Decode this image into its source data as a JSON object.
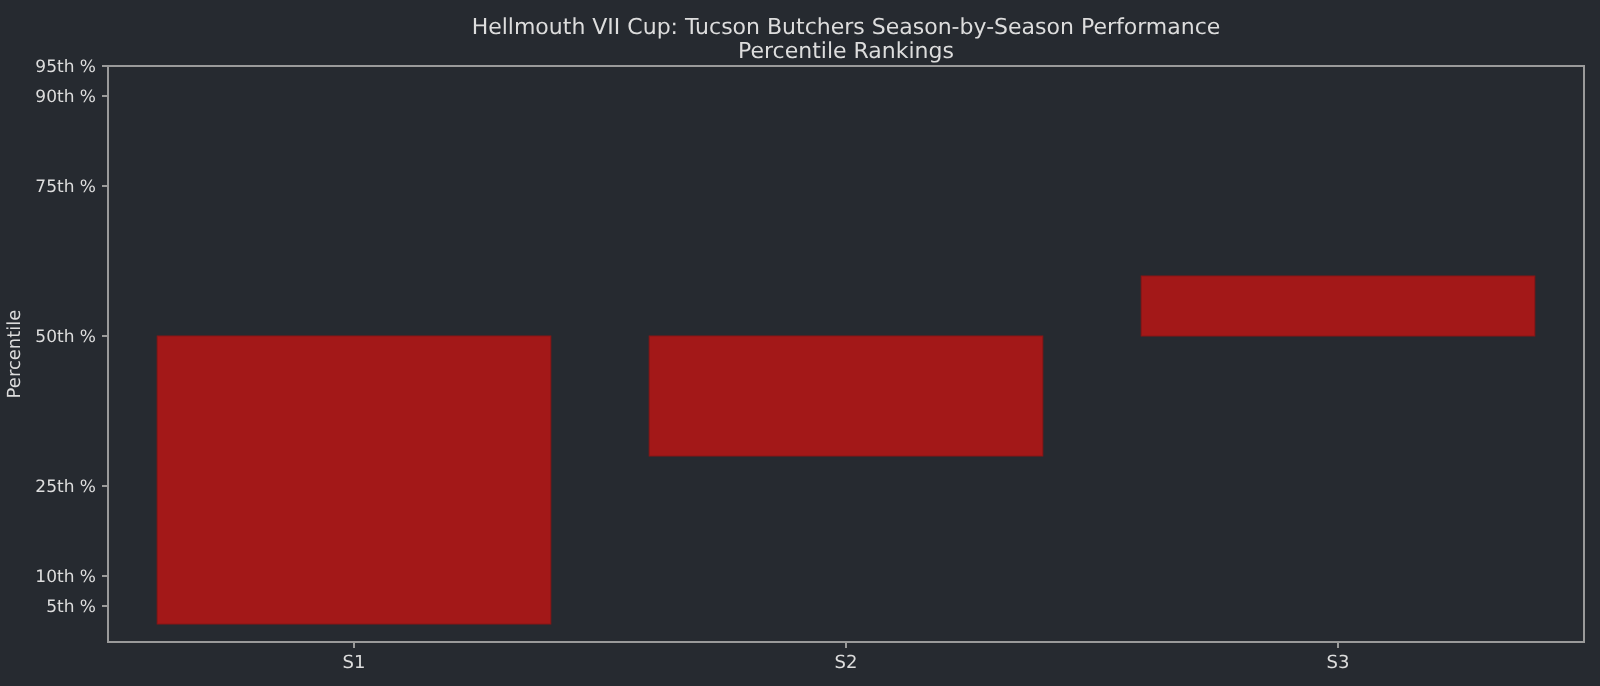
{
  "chart_data": {
    "type": "bar",
    "title": "Hellmouth VII Cup: Tucson Butchers Season-by-Season Performance",
    "subtitle": "Percentile Rankings",
    "ylabel": "Percentile",
    "categories": [
      "S1",
      "S2",
      "S3"
    ],
    "base": [
      2,
      30,
      50
    ],
    "values": [
      48,
      20,
      10
    ],
    "color": "#a31818",
    "ylim": [
      -1,
      95
    ],
    "yticks": [
      {
        "value": 5,
        "label": "5th %"
      },
      {
        "value": 10,
        "label": "10th %"
      },
      {
        "value": 25,
        "label": "25th %"
      },
      {
        "value": 50,
        "label": "50th %"
      },
      {
        "value": 75,
        "label": "75th %"
      },
      {
        "value": 90,
        "label": "90th %"
      },
      {
        "value": 95,
        "label": "95th %"
      }
    ],
    "grid": false
  }
}
